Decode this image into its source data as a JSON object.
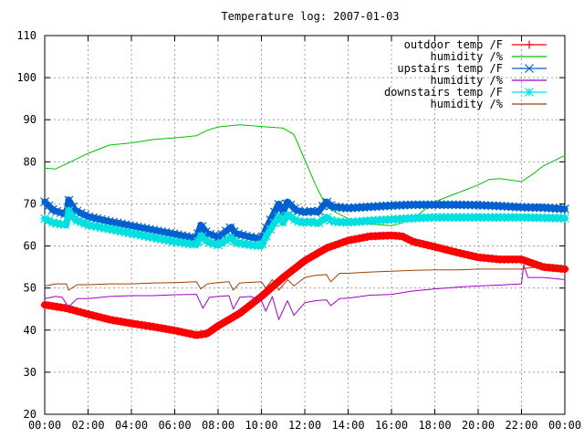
{
  "chart_data": {
    "type": "line",
    "title": "Temperature log: 2007-01-03",
    "xlabel": "",
    "ylabel": "",
    "xlim": [
      "00:00",
      "24:00"
    ],
    "ylim": [
      20,
      110
    ],
    "grid": true,
    "legend_position": "top-right",
    "x_ticks": [
      "00:00",
      "02:00",
      "04:00",
      "06:00",
      "08:00",
      "10:00",
      "12:00",
      "14:00",
      "16:00",
      "18:00",
      "20:00",
      "22:00",
      "00:00"
    ],
    "y_ticks": [
      "20",
      "30",
      "40",
      "50",
      "60",
      "70",
      "80",
      "90",
      "100",
      "110"
    ],
    "series": [
      {
        "name": "outdoor temp /F",
        "color": "#ff0000",
        "marker": "plus",
        "x": [
          0,
          1,
          2,
          3,
          4,
          5,
          6,
          7,
          7.5,
          8,
          9,
          10,
          11,
          12,
          13,
          14,
          15,
          16,
          16.5,
          17,
          18,
          19,
          20,
          21,
          22,
          23,
          24
        ],
        "y": [
          46,
          45.2,
          43.8,
          42.5,
          41.6,
          40.8,
          39.9,
          38.8,
          39.2,
          41.0,
          44.0,
          48.0,
          52.5,
          56.5,
          59.5,
          61.3,
          62.3,
          62.5,
          62.3,
          61.0,
          59.8,
          58.5,
          57.3,
          56.8,
          56.8,
          55.0,
          54.5
        ]
      },
      {
        "name": "humidity /%",
        "color": "#00c000",
        "marker": "none",
        "x": [
          0,
          0.5,
          1,
          2,
          3,
          4,
          5,
          6,
          7,
          7.5,
          8,
          9,
          10,
          11,
          11.5,
          12,
          12.5,
          13,
          13.5,
          14,
          15,
          16,
          16.5,
          17,
          18,
          19,
          20,
          20.5,
          21,
          22,
          22.5,
          23,
          24
        ],
        "y": [
          78.5,
          78.3,
          79.5,
          82,
          84,
          84.5,
          85.3,
          85.7,
          86.2,
          87.5,
          88.3,
          88.8,
          88.4,
          88.0,
          86.5,
          80.5,
          74.5,
          69.3,
          67.8,
          66.5,
          65.2,
          64.8,
          65.5,
          66.5,
          70.5,
          72.5,
          74.5,
          75.8,
          76.0,
          75.3,
          77.0,
          79.0,
          81.5
        ]
      },
      {
        "name": "upstairs temp /F",
        "color": "#0060d0",
        "marker": "cross",
        "x": [
          0,
          0.4,
          1,
          1.1,
          1.4,
          2,
          3,
          4,
          5,
          6,
          7,
          7.2,
          7.5,
          7.8,
          8,
          8.6,
          8.8,
          9.2,
          9.6,
          10,
          10.3,
          10.8,
          11,
          11.2,
          11.6,
          12,
          12.3,
          12.6,
          13,
          13.3,
          14,
          15,
          16,
          17,
          18,
          19,
          20,
          21,
          22,
          23,
          24
        ],
        "y": [
          70.5,
          68.5,
          67.5,
          71.0,
          68.5,
          67.0,
          65.8,
          64.8,
          63.8,
          62.8,
          61.8,
          65.0,
          63.0,
          62.5,
          62.0,
          64.5,
          63.0,
          62.5,
          62.0,
          61.7,
          65.0,
          70.0,
          68.0,
          70.5,
          68.5,
          68.0,
          68.3,
          68.0,
          70.5,
          69.3,
          69.0,
          69.3,
          69.6,
          69.8,
          69.8,
          69.8,
          69.7,
          69.5,
          69.2,
          69.1,
          68.8
        ]
      },
      {
        "name": "humidity /%",
        "color": "#a000c8",
        "marker": "none",
        "x": [
          0,
          0.5,
          0.8,
          1.1,
          1.5,
          2,
          3,
          4,
          5,
          6,
          7,
          7.3,
          7.6,
          8,
          8.5,
          8.7,
          9,
          9.5,
          10,
          10.2,
          10.5,
          10.8,
          11.2,
          11.5,
          12,
          12.5,
          13,
          13.2,
          13.6,
          14,
          15,
          16,
          17,
          18,
          19,
          20,
          21,
          22,
          22.1,
          22.3,
          23,
          24
        ],
        "y": [
          47.5,
          48.0,
          47.8,
          45.5,
          47.5,
          47.5,
          48.0,
          48.2,
          48.2,
          48.4,
          48.5,
          45.2,
          47.8,
          48.0,
          48.2,
          45.0,
          47.8,
          48.0,
          47.0,
          44.5,
          48.0,
          42.5,
          47.0,
          43.5,
          46.5,
          47.0,
          47.2,
          45.8,
          47.5,
          47.6,
          48.3,
          48.5,
          49.3,
          49.8,
          50.2,
          50.5,
          50.7,
          51.0,
          55.5,
          52.5,
          52.5,
          52.0
        ]
      },
      {
        "name": "downstairs temp /F",
        "color": "#00e0e0",
        "marker": "star",
        "x": [
          0,
          0.4,
          1,
          1.1,
          1.4,
          2,
          3,
          4,
          5,
          6,
          7,
          7.2,
          7.5,
          7.8,
          8,
          8.6,
          8.8,
          9.2,
          9.6,
          10,
          10.3,
          10.8,
          11,
          11.2,
          11.6,
          12,
          12.3,
          12.6,
          13,
          13.3,
          14,
          15,
          16,
          17,
          18,
          19,
          20,
          21,
          22,
          23,
          24
        ],
        "y": [
          66.5,
          65.5,
          65.0,
          68.5,
          66.2,
          65.0,
          64.0,
          63.0,
          62.0,
          61.0,
          60.3,
          62.5,
          61.0,
          60.5,
          60.2,
          62.0,
          60.8,
          60.5,
          60.2,
          60.0,
          63.0,
          67.0,
          65.5,
          67.5,
          66.0,
          65.5,
          65.8,
          65.3,
          66.8,
          65.8,
          65.6,
          66.0,
          66.3,
          66.6,
          66.8,
          66.8,
          66.8,
          66.8,
          66.8,
          66.7,
          66.6
        ]
      },
      {
        "name": "humidity /%",
        "color": "#a04000",
        "marker": "none",
        "x": [
          0,
          0.5,
          1,
          1.1,
          1.5,
          2,
          3,
          4,
          5,
          6,
          7,
          7.2,
          7.5,
          8,
          8.5,
          8.7,
          9,
          10,
          10.2,
          10.5,
          10.8,
          11.2,
          11.5,
          12,
          12.5,
          13,
          13.2,
          13.6,
          14,
          15,
          16,
          17,
          18,
          19,
          20,
          21,
          22,
          22.1,
          22.3,
          23,
          24
        ],
        "y": [
          50.5,
          51.0,
          51.0,
          49.5,
          50.8,
          50.8,
          51.0,
          51.0,
          51.2,
          51.3,
          51.5,
          49.8,
          51.0,
          51.3,
          51.5,
          49.5,
          51.2,
          51.5,
          50.0,
          52.0,
          49.5,
          52.0,
          50.5,
          52.5,
          53.0,
          53.2,
          51.5,
          53.5,
          53.5,
          53.8,
          54.0,
          54.2,
          54.3,
          54.3,
          54.5,
          54.5,
          54.5,
          54.5,
          54.8,
          55.0,
          55.0
        ]
      }
    ]
  }
}
